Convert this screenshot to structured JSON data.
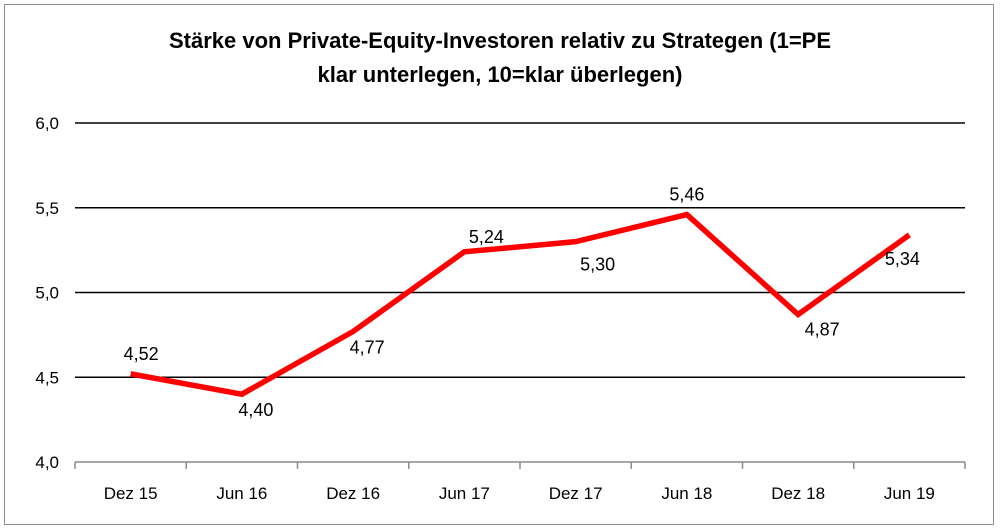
{
  "chart_data": {
    "type": "line",
    "title": "Stärke von Private-Equity-Investoren relativ zu Strategen (1=PE klar unterlegen, 10=klar überlegen)",
    "title_lines": [
      "Stärke von Private-Equity-Investoren relativ zu Strategen (1=PE",
      "klar unterlegen, 10=klar überlegen)"
    ],
    "xlabel": "",
    "ylabel": "",
    "categories": [
      "Dez 15",
      "Jun 16",
      "Dez 16",
      "Jun 17",
      "Dez 17",
      "Jun 18",
      "Dez 18",
      "Jun 19"
    ],
    "series": [
      {
        "values": [
          4.52,
          4.4,
          4.77,
          5.24,
          5.3,
          5.46,
          4.87,
          5.34
        ],
        "labels": [
          "4,52",
          "4,40",
          "4,77",
          "5,24",
          "5,30",
          "5,46",
          "4,87",
          "5,34"
        ],
        "color": "#ff0000"
      }
    ],
    "ylim": [
      4.0,
      6.0
    ],
    "yticks": [
      4.0,
      4.5,
      5.0,
      5.5,
      6.0
    ],
    "ytick_labels": [
      "4,0",
      "4,5",
      "5,0",
      "5,5",
      "6,0"
    ],
    "grid": true,
    "gridline_color": "#000000",
    "legend": "none"
  }
}
